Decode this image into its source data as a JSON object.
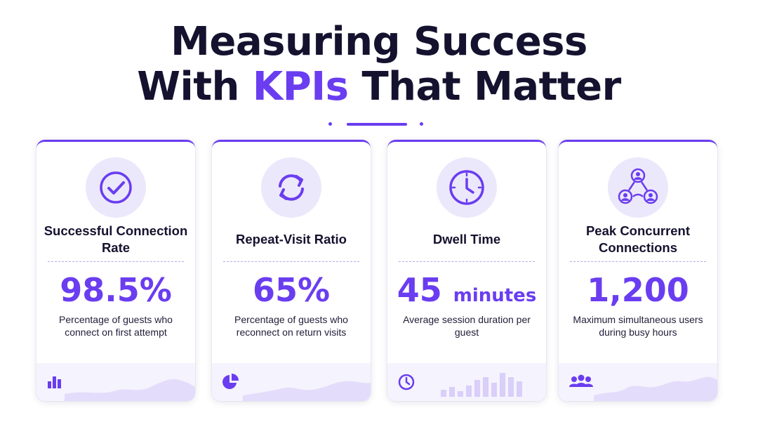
{
  "header": {
    "title_line1": "Measuring Success",
    "title_line2_pre": "With ",
    "title_line2_accent": "KPIs",
    "title_line2_post": " That Matter"
  },
  "colors": {
    "accent": "#6a3df0",
    "accent_light": "#ece8fb",
    "text": "#14122e"
  },
  "cards": [
    {
      "icon": "check-circle-icon",
      "title": "Successful Connection Rate",
      "value": "98.5%",
      "unit": "",
      "description": "Percentage of guests who connect on first attempt",
      "footer_icon": "bar-chart-icon"
    },
    {
      "icon": "refresh-icon",
      "title": "Repeat-Visit Ratio",
      "value": "65%",
      "unit": "",
      "description": "Percentage of guests who reconnect on return visits",
      "footer_icon": "pie-chart-icon"
    },
    {
      "icon": "clock-icon",
      "title": "Dwell Time",
      "value": "45",
      "unit": "minutes",
      "description": "Average session duration per guest",
      "footer_icon": "clock-icon"
    },
    {
      "icon": "network-users-icon",
      "title": "Peak Concurrent Connections",
      "value": "1,200",
      "unit": "",
      "description": "Maximum simultaneous users during busy hours",
      "footer_icon": "users-group-icon"
    }
  ]
}
